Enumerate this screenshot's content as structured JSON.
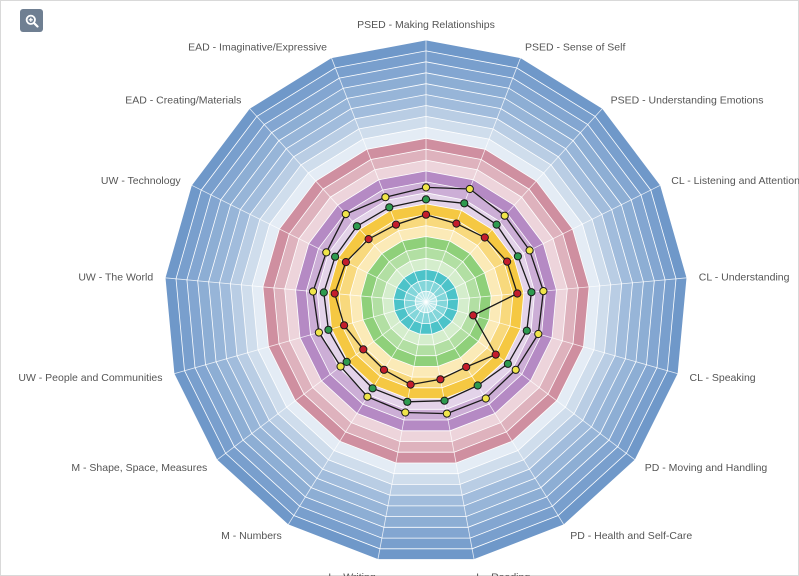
{
  "toolbar": {
    "zoom_icon": "zoom-in-icon"
  },
  "chart_data": {
    "type": "radar",
    "title": "",
    "axes": [
      "PSED - Making Relationships",
      "PSED - Sense of Self",
      "PSED - Understanding Emotions",
      "CL - Listening and Attention",
      "CL - Understanding",
      "CL - Speaking",
      "PD - Moving and Handling",
      "PD - Health and Self-Care",
      "L - Reading",
      "L - Writing",
      "M - Numbers",
      "M - Shape, Space, Measures",
      "UW - People and Communities",
      "UW - The World",
      "UW - Technology",
      "EAD - Creating/Materials",
      "EAD - Imaginative/Expressive"
    ],
    "radial_range": [
      0,
      24
    ],
    "bands": [
      {
        "from": 0,
        "to": 3,
        "color": "#4cc3c9"
      },
      {
        "from": 3,
        "to": 6,
        "color": "#8fd07a"
      },
      {
        "from": 6,
        "to": 9,
        "color": "#f5c842"
      },
      {
        "from": 9,
        "to": 12,
        "color": "#b58ac4"
      },
      {
        "from": 12,
        "to": 15,
        "color": "#cf8fa0"
      },
      {
        "from": 15,
        "to": 18,
        "color": "#b9cde4"
      },
      {
        "from": 18,
        "to": 24,
        "color": "#6f98c9"
      }
    ],
    "series": [
      {
        "color": "#f0e54a",
        "values": [
          10.5,
          11.1,
          10.7,
          10.6,
          10.8,
          10.7,
          10.3,
          10.4,
          10.4,
          10.3,
          10.2,
          9.8,
          10.2,
          10.4,
          10.2,
          10.9,
          10.3
        ]
      },
      {
        "color": "#2e9a4f",
        "values": [
          9.4,
          9.7,
          9.6,
          9.4,
          9.7,
          9.6,
          9.4,
          9.0,
          9.2,
          9.3,
          9.3,
          9.1,
          9.3,
          9.4,
          9.3,
          9.4,
          9.3
        ]
      },
      {
        "color": "#c41d2c",
        "values": [
          8.0,
          7.7,
          8.0,
          8.3,
          8.4,
          4.5,
          8.0,
          7.0,
          7.2,
          7.7,
          7.3,
          7.2,
          7.8,
          8.4,
          8.2,
          7.8,
          7.6
        ]
      }
    ]
  }
}
